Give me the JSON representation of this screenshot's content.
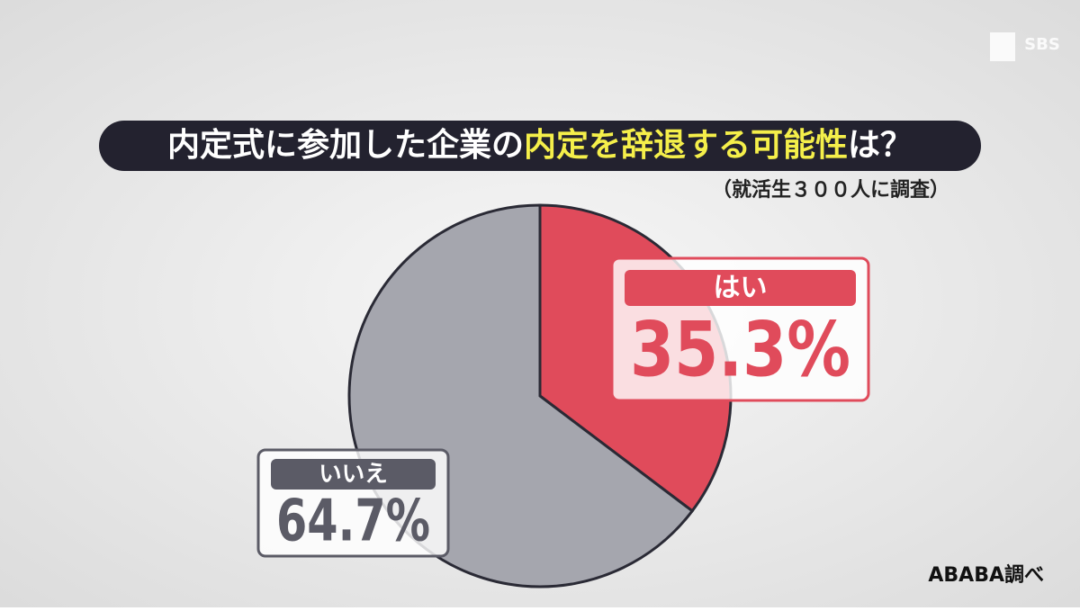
{
  "logo": "SBS",
  "chart_data": {
    "type": "pie",
    "title": [
      {
        "text": "内定式に参加した企業の",
        "color": "#ffffff"
      },
      {
        "text": "内定を辞退する可能性",
        "color": "#f5ef4a"
      },
      {
        "text": "は？",
        "color": "#ffffff"
      }
    ],
    "subtitle": "（就活生３００人に調査）",
    "source": "ABABA調べ",
    "categories": [
      "はい",
      "いいえ"
    ],
    "values": [
      35.3,
      64.7
    ],
    "value_labels": [
      "35.3%",
      "64.7%"
    ],
    "colors": [
      "#e04b5b",
      "#a5a6ae"
    ]
  }
}
